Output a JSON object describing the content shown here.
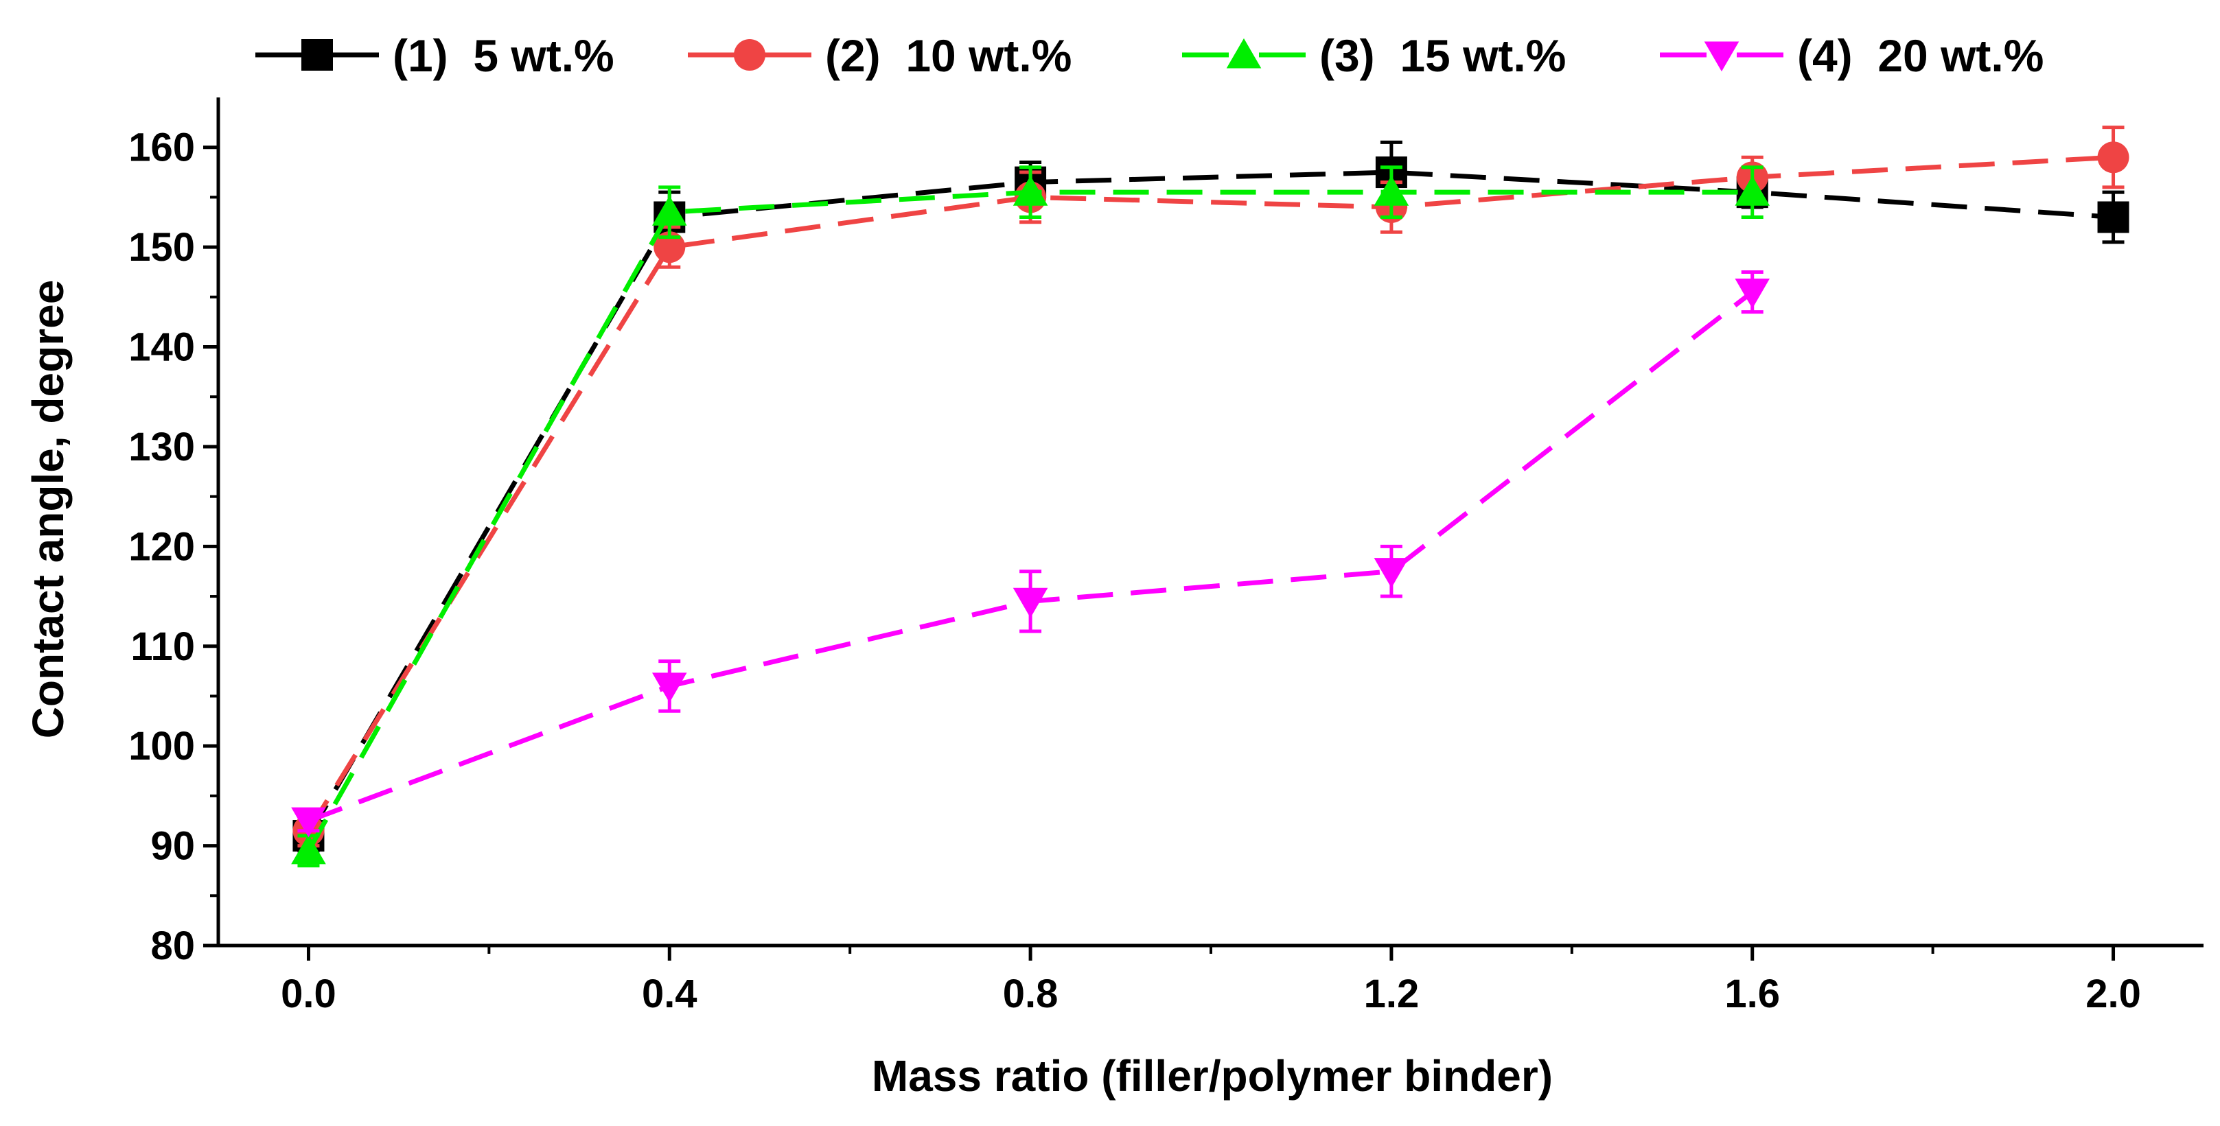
{
  "chart_data": {
    "type": "line",
    "title": "",
    "xlabel": "Mass ratio (filler/polymer binder)",
    "ylabel": "Contact angle, degree",
    "xlim": [
      -0.1,
      2.1
    ],
    "ylim": [
      80,
      165
    ],
    "x_ticks": [
      "0.0",
      "0.4",
      "0.8",
      "1.2",
      "1.6",
      "2.0"
    ],
    "x_tick_values": [
      0.0,
      0.4,
      0.8,
      1.2,
      1.6,
      2.0
    ],
    "y_ticks": [
      "80",
      "90",
      "100",
      "110",
      "120",
      "130",
      "140",
      "150",
      "160"
    ],
    "y_tick_values": [
      80,
      90,
      100,
      110,
      120,
      130,
      140,
      150,
      160
    ],
    "legend_position": "top",
    "series": [
      {
        "name": "(1)  5 wt.%",
        "color": "#000000",
        "marker": "square",
        "x": [
          0.0,
          0.4,
          0.8,
          1.2,
          1.6,
          2.0
        ],
        "values": [
          91,
          153,
          156.5,
          157.5,
          155.5,
          153
        ],
        "errors": [
          1.5,
          2.5,
          2,
          3,
          1.5,
          2.5
        ]
      },
      {
        "name": "(2)  10 wt.%",
        "color": "#ef4444",
        "marker": "circle",
        "x": [
          0.0,
          0.4,
          0.8,
          1.2,
          1.6,
          2.0
        ],
        "values": [
          91.5,
          150,
          155,
          154,
          157,
          159
        ],
        "errors": [
          1.5,
          2,
          2.5,
          2.5,
          2,
          3
        ]
      },
      {
        "name": "(3)  15 wt.%",
        "color": "#00ee00",
        "marker": "triangle-up",
        "x": [
          0.0,
          0.4,
          0.8,
          1.2,
          1.6
        ],
        "values": [
          89.5,
          153.5,
          155.5,
          155.5,
          155.5
        ],
        "errors": [
          1.5,
          2.5,
          2.5,
          2.5,
          2.5
        ]
      },
      {
        "name": "(4)  20 wt.%",
        "color": "#ff00ff",
        "marker": "triangle-down",
        "x": [
          0.0,
          0.4,
          0.8,
          1.2,
          1.6
        ],
        "values": [
          92.5,
          106,
          114.5,
          117.5,
          145.5
        ],
        "errors": [
          1,
          2.5,
          3,
          2.5,
          2
        ]
      }
    ]
  }
}
